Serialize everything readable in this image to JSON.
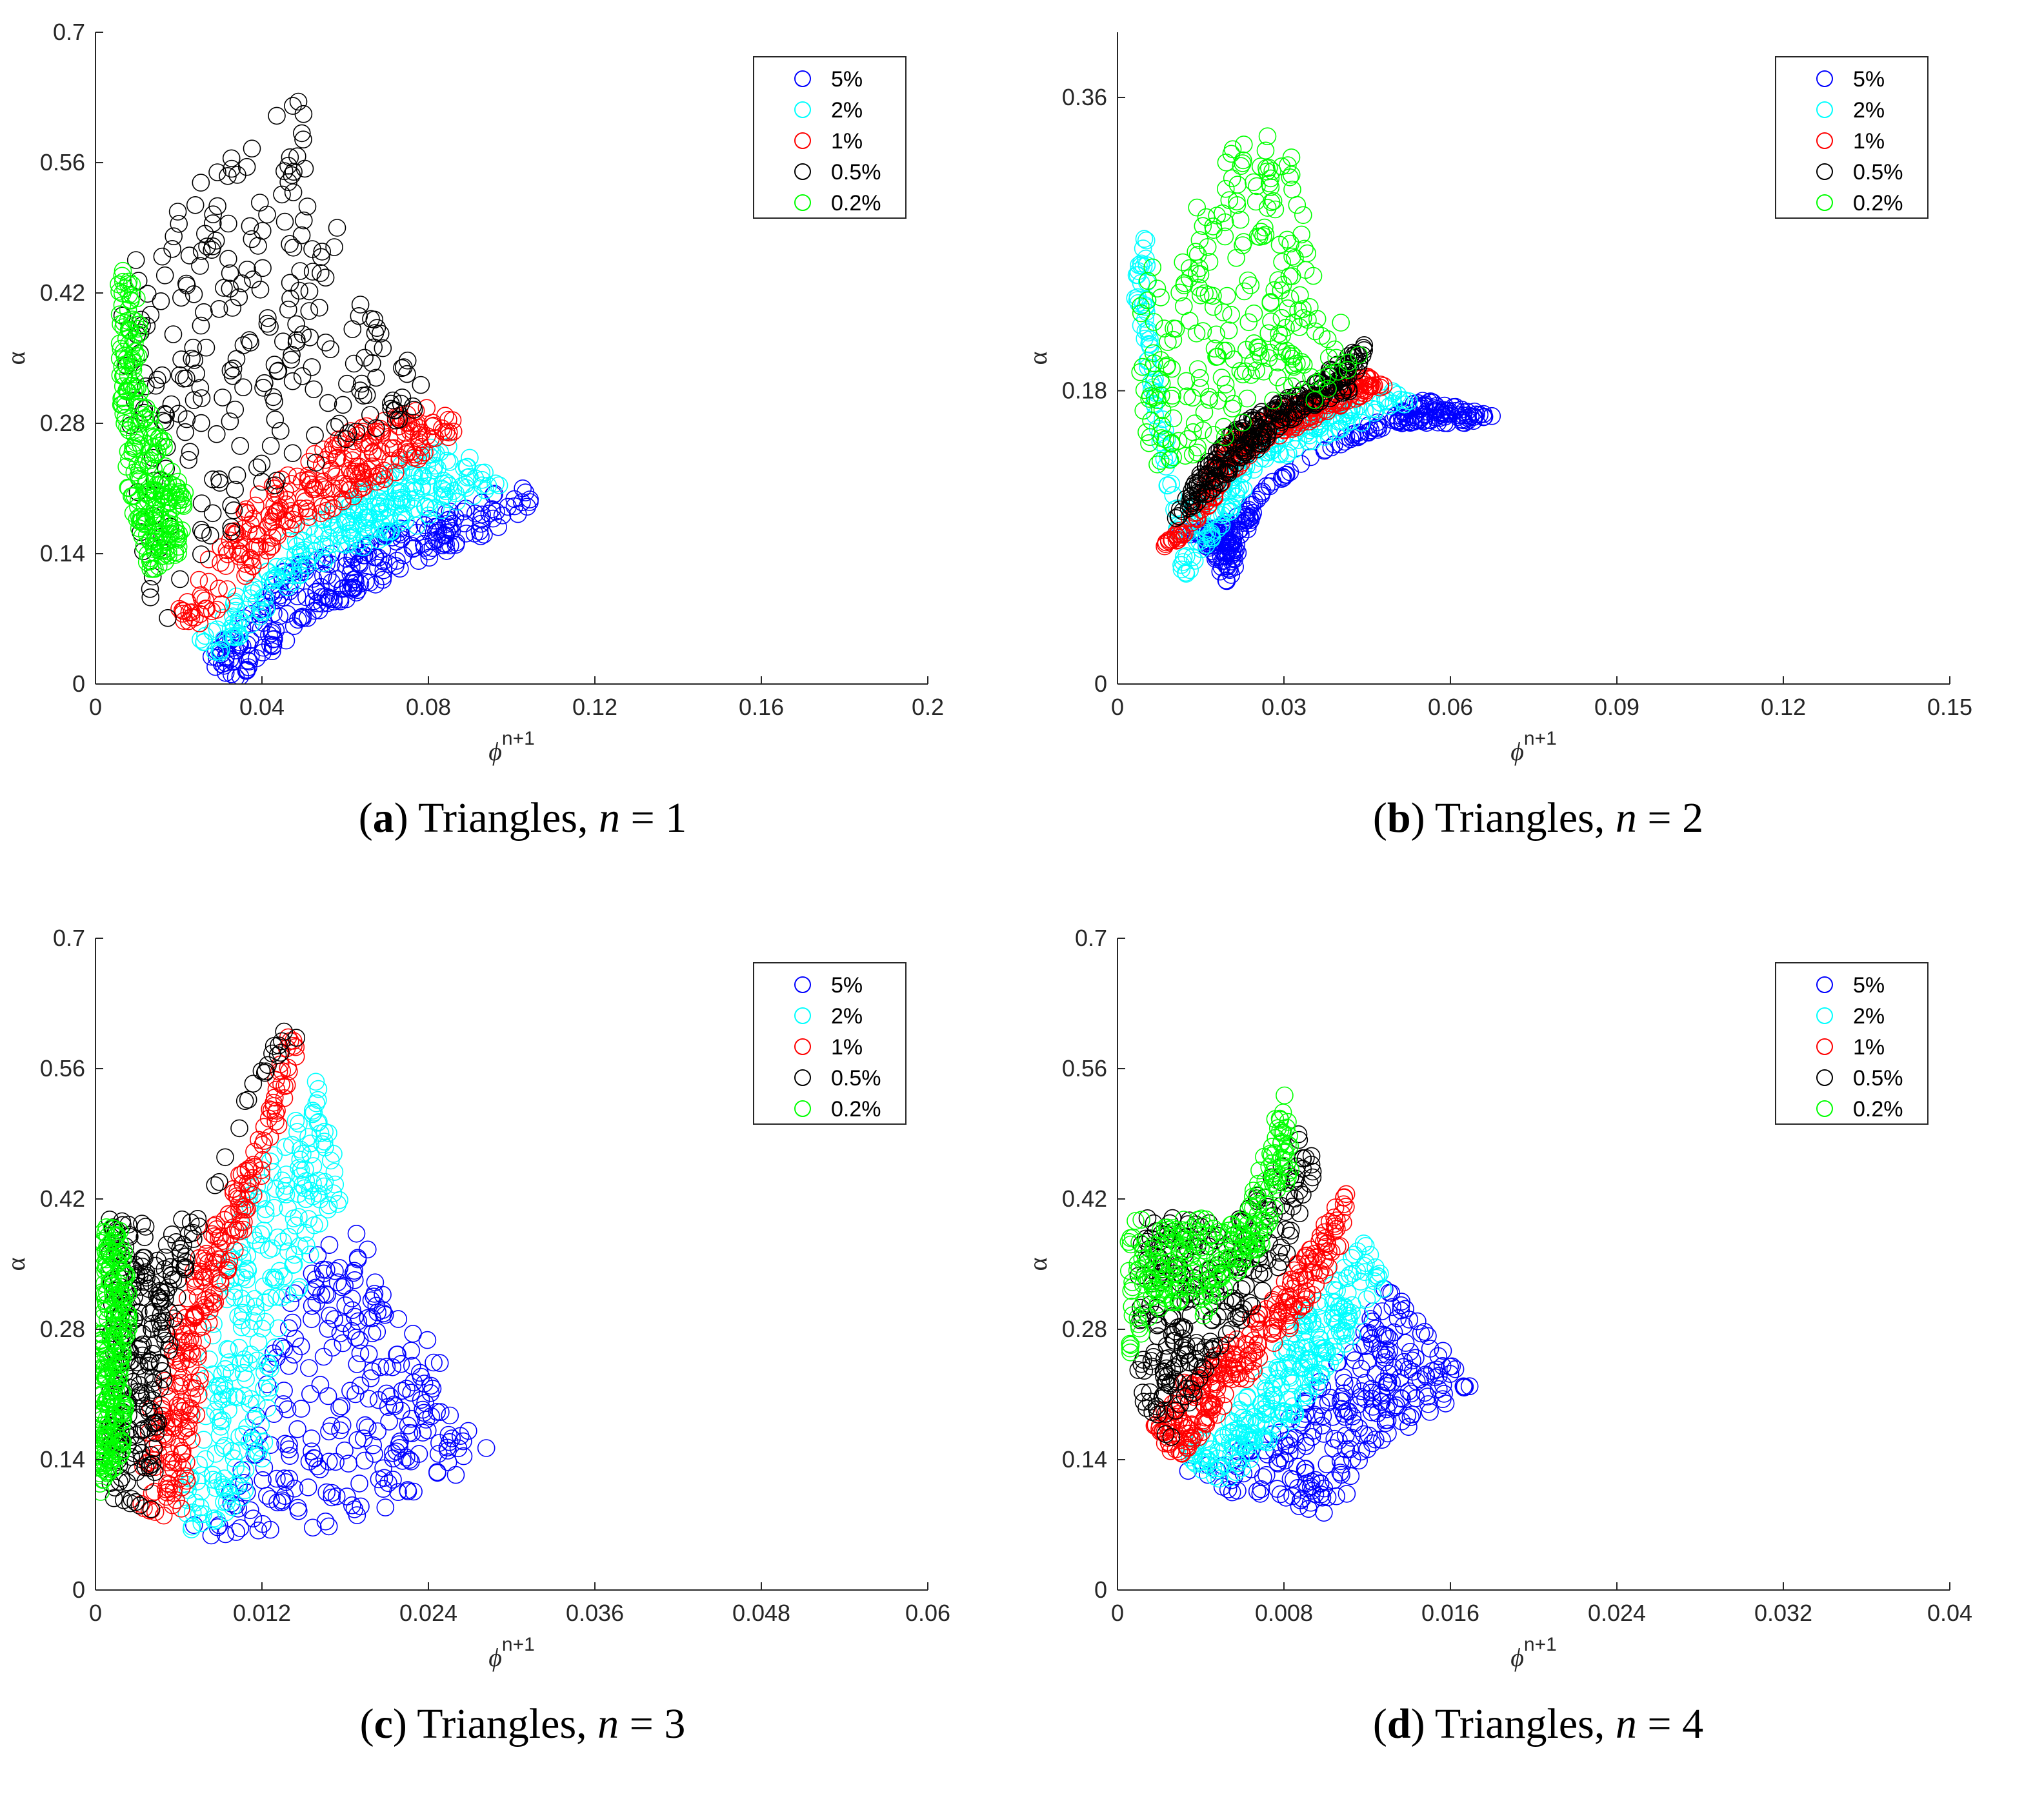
{
  "panels": [
    {
      "caption": {
        "letter": "a",
        "text": "Triangles, ",
        "var": "n",
        "eq": " = ",
        "num": "1"
      },
      "xlabel": "ϕ",
      "xlabel_sup": "n+1",
      "ylabel": "α",
      "xticks": [
        "0",
        "0.04",
        "0.08",
        "0.12",
        "0.16",
        "0.2"
      ],
      "yticks": [
        "0",
        "0.14",
        "0.28",
        "0.42",
        "0.56",
        "0.7"
      ],
      "legend": [
        "5%",
        "2%",
        "1%",
        "0.5%",
        "0.2%"
      ]
    },
    {
      "caption": {
        "letter": "b",
        "text": "Triangles, ",
        "var": "n",
        "eq": " = ",
        "num": "2"
      },
      "xlabel": "ϕ",
      "xlabel_sup": "n+1",
      "ylabel": "α",
      "xticks": [
        "0",
        "0.03",
        "0.06",
        "0.09",
        "0.12",
        "0.15"
      ],
      "yticks": [
        "0",
        "0.18",
        "0.36"
      ],
      "legend": [
        "5%",
        "2%",
        "1%",
        "0.5%",
        "0.2%"
      ]
    },
    {
      "caption": {
        "letter": "c",
        "text": "Triangles, ",
        "var": "n",
        "eq": " = ",
        "num": "3"
      },
      "xlabel": "ϕ",
      "xlabel_sup": "n+1",
      "ylabel": "α",
      "xticks": [
        "0",
        "0.012",
        "0.024",
        "0.036",
        "0.048",
        "0.06"
      ],
      "yticks": [
        "0",
        "0.14",
        "0.28",
        "0.42",
        "0.56",
        "0.7"
      ],
      "legend": [
        "5%",
        "2%",
        "1%",
        "0.5%",
        "0.2%"
      ]
    },
    {
      "caption": {
        "letter": "d",
        "text": "Triangles, ",
        "var": "n",
        "eq": " = ",
        "num": "4"
      },
      "xlabel": "ϕ",
      "xlabel_sup": "n+1",
      "ylabel": "α",
      "xticks": [
        "0",
        "0.008",
        "0.016",
        "0.024",
        "0.032",
        "0.04"
      ],
      "yticks": [
        "0",
        "0.14",
        "0.28",
        "0.42",
        "0.56",
        "0.7"
      ],
      "legend": [
        "5%",
        "2%",
        "1%",
        "0.5%",
        "0.2%"
      ]
    }
  ],
  "chart_data": [
    {
      "type": "scatter",
      "xlim": [
        0,
        0.2
      ],
      "ylim": [
        0,
        0.7
      ],
      "legend_position": "top-right",
      "series": [
        {
          "name": "5%",
          "color": "#0000ff",
          "region": [
            [
              0.026,
              0.02
            ],
            [
              0.034,
              0.005
            ],
            [
              0.06,
              0.09
            ],
            [
              0.09,
              0.15
            ],
            [
              0.107,
              0.195
            ],
            [
              0.102,
              0.215
            ],
            [
              0.08,
              0.18
            ],
            [
              0.055,
              0.14
            ],
            [
              0.045,
              0.125
            ],
            [
              0.04,
              0.09
            ],
            [
              0.032,
              0.06
            ]
          ]
        },
        {
          "name": "2%",
          "color": "#00ffff",
          "region": [
            [
              0.022,
              0.04
            ],
            [
              0.03,
              0.03
            ],
            [
              0.05,
              0.12
            ],
            [
              0.075,
              0.165
            ],
            [
              0.098,
              0.215
            ],
            [
              0.092,
              0.245
            ],
            [
              0.082,
              0.26
            ],
            [
              0.06,
              0.2
            ],
            [
              0.045,
              0.15
            ],
            [
              0.035,
              0.1
            ]
          ]
        },
        {
          "name": "1%",
          "color": "#ff0000",
          "region": [
            [
              0.018,
              0.07
            ],
            [
              0.026,
              0.06
            ],
            [
              0.045,
              0.16
            ],
            [
              0.07,
              0.22
            ],
            [
              0.088,
              0.27
            ],
            [
              0.083,
              0.305
            ],
            [
              0.06,
              0.27
            ],
            [
              0.04,
              0.21
            ],
            [
              0.028,
              0.14
            ]
          ]
        },
        {
          "name": "0.5%",
          "color": "#000000",
          "region": [
            [
              0.006,
              0.44
            ],
            [
              0.012,
              0.48
            ],
            [
              0.03,
              0.56
            ],
            [
              0.048,
              0.64
            ],
            [
              0.05,
              0.64
            ],
            [
              0.057,
              0.5
            ],
            [
              0.07,
              0.38
            ],
            [
              0.083,
              0.3
            ],
            [
              0.06,
              0.26
            ],
            [
              0.035,
              0.18
            ],
            [
              0.02,
              0.06
            ],
            [
              0.012,
              0.08
            ],
            [
              0.008,
              0.15
            ],
            [
              0.007,
              0.3
            ]
          ]
        },
        {
          "name": "0.2%",
          "color": "#00ff00",
          "region": [
            [
              0.005,
              0.45
            ],
            [
              0.008,
              0.44
            ],
            [
              0.011,
              0.4
            ],
            [
              0.01,
              0.32
            ],
            [
              0.015,
              0.28
            ],
            [
              0.022,
              0.2
            ],
            [
              0.02,
              0.13
            ],
            [
              0.013,
              0.12
            ],
            [
              0.008,
              0.2
            ],
            [
              0.006,
              0.3
            ]
          ]
        }
      ]
    },
    {
      "type": "scatter",
      "xlim": [
        0,
        0.15
      ],
      "ylim": [
        0,
        0.4
      ],
      "legend_position": "top-right",
      "series": [
        {
          "name": "5%",
          "color": "#0000ff",
          "region": [
            [
              0.009,
              0.09
            ],
            [
              0.015,
              0.09
            ],
            [
              0.02,
              0.06
            ],
            [
              0.026,
              0.12
            ],
            [
              0.04,
              0.15
            ],
            [
              0.055,
              0.175
            ],
            [
              0.068,
              0.165
            ],
            [
              0.063,
              0.16
            ],
            [
              0.05,
              0.16
            ],
            [
              0.035,
              0.14
            ],
            [
              0.02,
              0.1
            ]
          ]
        },
        {
          "name": "2%",
          "color": "#00ffff",
          "region": [
            [
              0.003,
              0.24
            ],
            [
              0.005,
              0.3
            ],
            [
              0.006,
              0.2
            ],
            [
              0.012,
              0.1
            ],
            [
              0.02,
              0.14
            ],
            [
              0.035,
              0.17
            ],
            [
              0.05,
              0.18
            ],
            [
              0.055,
              0.175
            ],
            [
              0.04,
              0.155
            ],
            [
              0.025,
              0.13
            ],
            [
              0.012,
              0.06
            ]
          ]
        },
        {
          "name": "1%",
          "color": "#ff0000",
          "region": [
            [
              0.007,
              0.08
            ],
            [
              0.012,
              0.1
            ],
            [
              0.02,
              0.15
            ],
            [
              0.03,
              0.17
            ],
            [
              0.045,
              0.19
            ],
            [
              0.05,
              0.185
            ],
            [
              0.04,
              0.17
            ],
            [
              0.025,
              0.145
            ],
            [
              0.012,
              0.09
            ]
          ]
        },
        {
          "name": "0.5%",
          "color": "#000000",
          "region": [
            [
              0.01,
              0.1
            ],
            [
              0.015,
              0.13
            ],
            [
              0.022,
              0.16
            ],
            [
              0.035,
              0.185
            ],
            [
              0.045,
              0.21
            ],
            [
              0.042,
              0.18
            ],
            [
              0.03,
              0.16
            ],
            [
              0.018,
              0.12
            ]
          ]
        },
        {
          "name": "0.2%",
          "color": "#00ff00",
          "region": [
            [
              0.003,
              0.18
            ],
            [
              0.005,
              0.28
            ],
            [
              0.008,
              0.24
            ],
            [
              0.015,
              0.3
            ],
            [
              0.02,
              0.33
            ],
            [
              0.03,
              0.34
            ],
            [
              0.038,
              0.24
            ],
            [
              0.045,
              0.21
            ],
            [
              0.04,
              0.18
            ],
            [
              0.025,
              0.16
            ],
            [
              0.015,
              0.14
            ],
            [
              0.008,
              0.13
            ],
            [
              0.004,
              0.14
            ]
          ]
        }
      ]
    },
    {
      "type": "scatter",
      "xlim": [
        0,
        0.06
      ],
      "ylim": [
        0,
        0.7
      ],
      "legend_position": "top-right",
      "series": [
        {
          "name": "5%",
          "color": "#0000ff",
          "region": [
            [
              0.008,
              0.05
            ],
            [
              0.015,
              0.06
            ],
            [
              0.024,
              0.1
            ],
            [
              0.029,
              0.15
            ],
            [
              0.026,
              0.2
            ],
            [
              0.025,
              0.26
            ],
            [
              0.022,
              0.3
            ],
            [
              0.018,
              0.42
            ],
            [
              0.016,
              0.38
            ],
            [
              0.012,
              0.24
            ],
            [
              0.011,
              0.14
            ],
            [
              0.007,
              0.07
            ]
          ]
        },
        {
          "name": "2%",
          "color": "#00ffff",
          "region": [
            [
              0.006,
              0.06
            ],
            [
              0.01,
              0.08
            ],
            [
              0.012,
              0.13
            ],
            [
              0.013,
              0.25
            ],
            [
              0.016,
              0.38
            ],
            [
              0.018,
              0.42
            ],
            [
              0.016,
              0.56
            ],
            [
              0.014,
              0.5
            ],
            [
              0.01,
              0.4
            ],
            [
              0.008,
              0.25
            ],
            [
              0.007,
              0.15
            ]
          ]
        },
        {
          "name": "1%",
          "color": "#ff0000",
          "region": [
            [
              0.003,
              0.09
            ],
            [
              0.006,
              0.07
            ],
            [
              0.007,
              0.15
            ],
            [
              0.008,
              0.28
            ],
            [
              0.011,
              0.4
            ],
            [
              0.015,
              0.58
            ],
            [
              0.014,
              0.6
            ],
            [
              0.012,
              0.5
            ],
            [
              0.008,
              0.38
            ],
            [
              0.006,
              0.3
            ],
            [
              0.004,
              0.2
            ]
          ]
        },
        {
          "name": "0.5%",
          "color": "#000000",
          "region": [
            [
              0.001,
              0.1
            ],
            [
              0.004,
              0.08
            ],
            [
              0.005,
              0.2
            ],
            [
              0.006,
              0.32
            ],
            [
              0.008,
              0.41
            ],
            [
              0.01,
              0.5
            ],
            [
              0.013,
              0.6
            ],
            [
              0.015,
              0.6
            ],
            [
              0.011,
              0.52
            ],
            [
              0.008,
              0.4
            ],
            [
              0.001,
              0.4
            ]
          ]
        },
        {
          "name": "0.2%",
          "color": "#00ff00",
          "region": [
            [
              0.0003,
              0.1
            ],
            [
              0.002,
              0.15
            ],
            [
              0.0025,
              0.3
            ],
            [
              0.002,
              0.39
            ],
            [
              0.0005,
              0.4
            ],
            [
              0.0002,
              0.25
            ]
          ]
        }
      ]
    },
    {
      "type": "scatter",
      "xlim": [
        0,
        0.04
      ],
      "ylim": [
        0,
        0.7
      ],
      "legend_position": "top-right",
      "series": [
        {
          "name": "5%",
          "color": "#0000ff",
          "region": [
            [
              0.003,
              0.13
            ],
            [
              0.006,
              0.1
            ],
            [
              0.01,
              0.08
            ],
            [
              0.011,
              0.1
            ],
            [
              0.012,
              0.15
            ],
            [
              0.016,
              0.2
            ],
            [
              0.017,
              0.22
            ],
            [
              0.013,
              0.33
            ],
            [
              0.011,
              0.26
            ],
            [
              0.008,
              0.18
            ],
            [
              0.005,
              0.14
            ]
          ]
        },
        {
          "name": "2%",
          "color": "#00ffff",
          "region": [
            [
              0.003,
              0.15
            ],
            [
              0.005,
              0.11
            ],
            [
              0.008,
              0.17
            ],
            [
              0.011,
              0.26
            ],
            [
              0.013,
              0.33
            ],
            [
              0.012,
              0.38
            ],
            [
              0.009,
              0.3
            ],
            [
              0.007,
              0.23
            ],
            [
              0.005,
              0.18
            ]
          ]
        },
        {
          "name": "1%",
          "color": "#ff0000",
          "region": [
            [
              0.0015,
              0.17
            ],
            [
              0.003,
              0.14
            ],
            [
              0.006,
              0.22
            ],
            [
              0.009,
              0.3
            ],
            [
              0.011,
              0.38
            ],
            [
              0.011,
              0.43
            ],
            [
              0.009,
              0.36
            ],
            [
              0.006,
              0.28
            ],
            [
              0.003,
              0.22
            ]
          ]
        },
        {
          "name": "0.5%",
          "color": "#000000",
          "region": [
            [
              0.001,
              0.2
            ],
            [
              0.0025,
              0.16
            ],
            [
              0.005,
              0.26
            ],
            [
              0.008,
              0.35
            ],
            [
              0.0095,
              0.45
            ],
            [
              0.009,
              0.5
            ],
            [
              0.006,
              0.4
            ],
            [
              0.001,
              0.4
            ]
          ]
        },
        {
          "name": "0.2%",
          "color": "#00ff00",
          "region": [
            [
              0.0005,
              0.25
            ],
            [
              0.002,
              0.3
            ],
            [
              0.004,
              0.32
            ],
            [
              0.004,
              0.29
            ],
            [
              0.007,
              0.37
            ],
            [
              0.0085,
              0.45
            ],
            [
              0.008,
              0.54
            ],
            [
              0.0075,
              0.5
            ],
            [
              0.006,
              0.4
            ],
            [
              0.0005,
              0.4
            ]
          ]
        }
      ]
    }
  ]
}
